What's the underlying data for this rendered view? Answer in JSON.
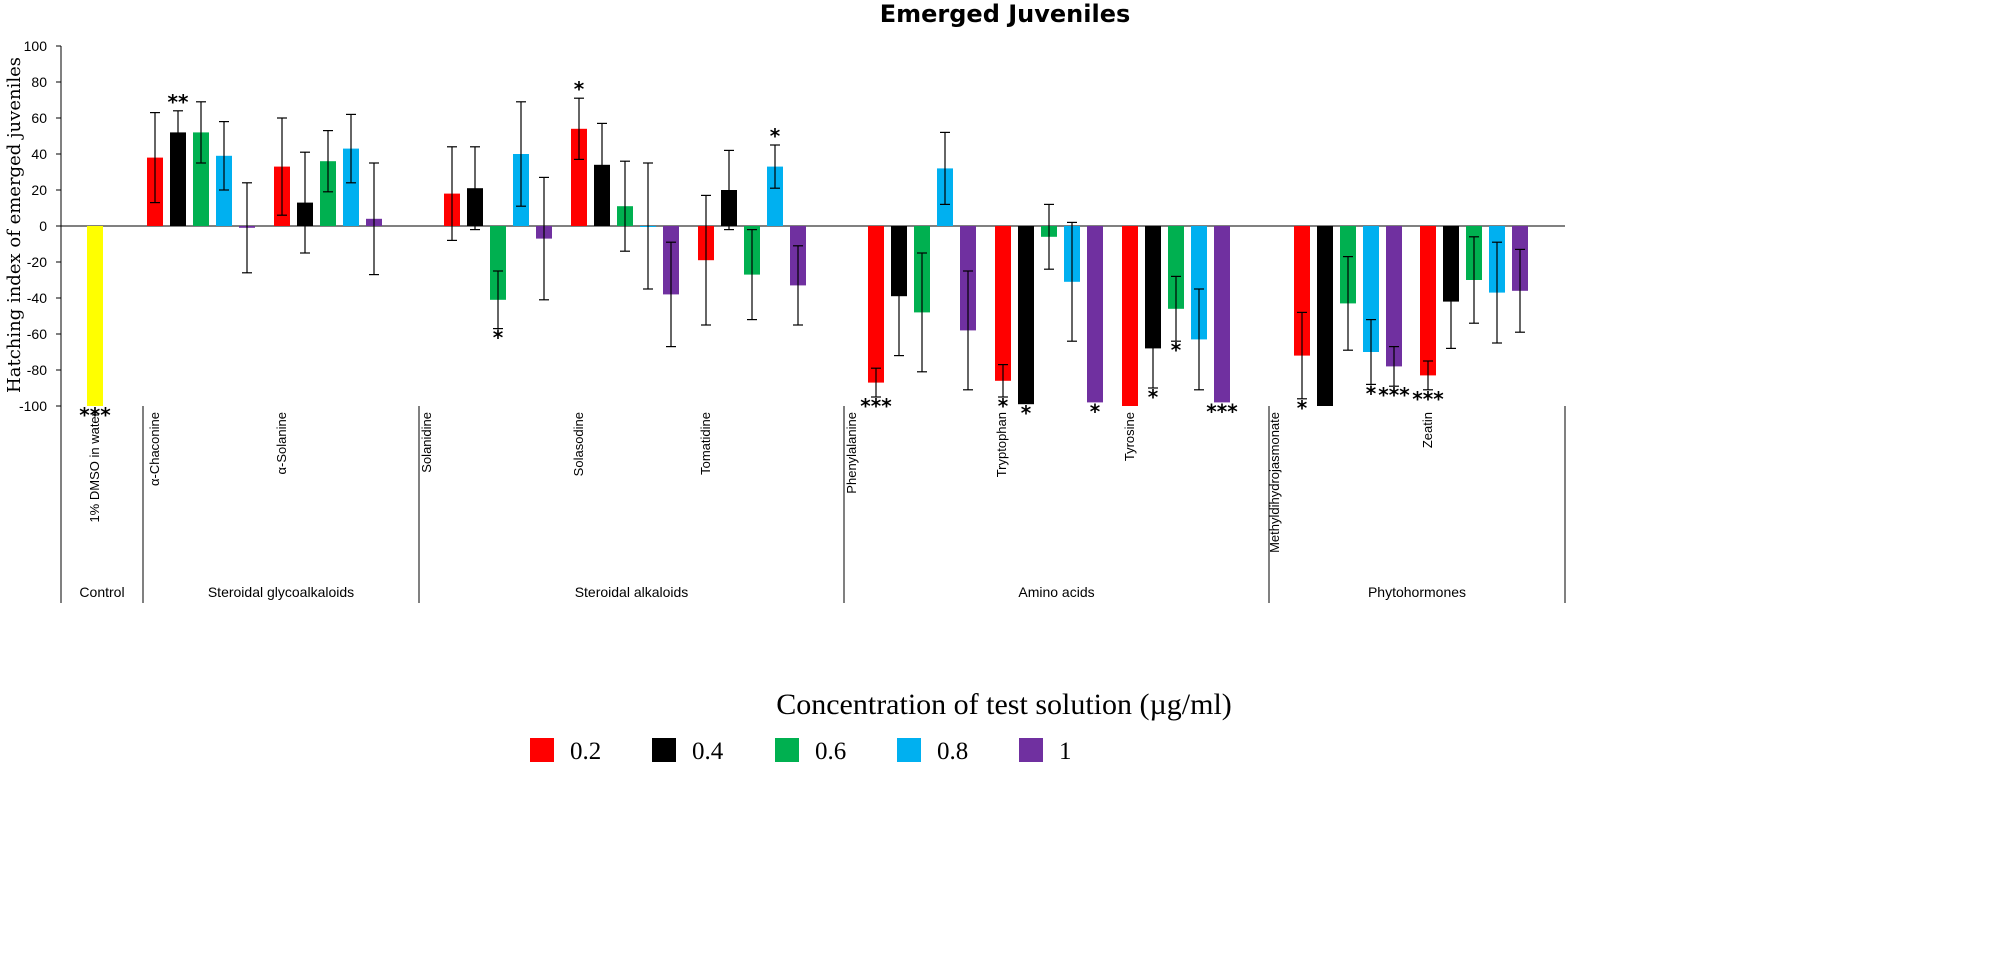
{
  "chart_data": {
    "type": "bar",
    "title": "Emerged Juveniles",
    "ylabel": "Hatching  index  of  emerged  juveniles",
    "ylim": [
      -100,
      100
    ],
    "yticks": [
      100,
      80,
      60,
      40,
      20,
      0,
      -20,
      -40,
      -60,
      -80,
      -100
    ],
    "grid": false,
    "legend": {
      "title": "Concentration of test solution (µg/ml)",
      "placement": "bottom",
      "items": [
        {
          "label": "0.2",
          "color": "#ff0000"
        },
        {
          "label": "0.4",
          "color": "#000000"
        },
        {
          "label": "0.6",
          "color": "#00b050"
        },
        {
          "label": "0.8",
          "color": "#00b0f0"
        },
        {
          "label": "1",
          "color": "#7030a0"
        }
      ]
    },
    "groups": [
      {
        "label": "Control",
        "compounds": [
          "1% DMSO in water"
        ]
      },
      {
        "label": "Steroidal glycoalkaloids",
        "compounds": [
          "α-Chaconine",
          "α-Solanine"
        ]
      },
      {
        "label": "Steroidal alkaloids",
        "compounds": [
          "Solanidine",
          "Solasodine",
          "Tomatidine"
        ]
      },
      {
        "label": "Amino acids",
        "compounds": [
          "Phenylalanine",
          "Tryptophan",
          "Tyrosine"
        ]
      },
      {
        "label": "Phytohormones",
        "compounds": [
          "Methyldihydrojasmonate",
          "Zeatin"
        ]
      }
    ],
    "compounds": [
      {
        "name": "1% DMSO in water",
        "bars": [
          {
            "value": -100,
            "error": 0,
            "color": "#ffff00",
            "sig": "***"
          }
        ]
      },
      {
        "name": "α-Chaconine",
        "bars": [
          {
            "value": 38,
            "error": 25,
            "sig": ""
          },
          {
            "value": 52,
            "error": 12,
            "sig": "**"
          },
          {
            "value": 52,
            "error": 17,
            "sig": ""
          },
          {
            "value": 39,
            "error": 19,
            "sig": ""
          },
          {
            "value": -1,
            "error": 25,
            "sig": ""
          }
        ]
      },
      {
        "name": "α-Solanine",
        "bars": [
          {
            "value": 33,
            "error": 27,
            "sig": ""
          },
          {
            "value": 13,
            "error": 28,
            "sig": ""
          },
          {
            "value": 36,
            "error": 17,
            "sig": ""
          },
          {
            "value": 43,
            "error": 19,
            "sig": ""
          },
          {
            "value": 4,
            "error": 31,
            "sig": ""
          }
        ]
      },
      {
        "name": "Solanidine",
        "bars": [
          {
            "value": 18,
            "error": 26,
            "sig": ""
          },
          {
            "value": 21,
            "error": 23,
            "sig": ""
          },
          {
            "value": -41,
            "error": 16,
            "sig": "*"
          },
          {
            "value": 40,
            "error": 29,
            "sig": ""
          },
          {
            "value": -7,
            "error": 34,
            "sig": ""
          }
        ]
      },
      {
        "name": "Solasodine",
        "bars": [
          {
            "value": 54,
            "error": 17,
            "sig": "*"
          },
          {
            "value": 34,
            "error": 23,
            "sig": ""
          },
          {
            "value": 11,
            "error": 25,
            "sig": ""
          },
          {
            "value": 0,
            "error": 35,
            "sig": ""
          },
          {
            "value": -38,
            "error": 29,
            "sig": ""
          }
        ]
      },
      {
        "name": "Tomatidine",
        "bars": [
          {
            "value": -19,
            "error": 36,
            "sig": ""
          },
          {
            "value": 20,
            "error": 22,
            "sig": ""
          },
          {
            "value": -27,
            "error": 25,
            "sig": ""
          },
          {
            "value": 33,
            "error": 12,
            "sig": "*"
          },
          {
            "value": -33,
            "error": 22,
            "sig": ""
          }
        ]
      },
      {
        "name": "Phenylalanine",
        "bars": [
          {
            "value": -87,
            "error": 8,
            "sig": "***"
          },
          {
            "value": -39,
            "error": 33,
            "sig": ""
          },
          {
            "value": -48,
            "error": 33,
            "sig": ""
          },
          {
            "value": 32,
            "error": 20,
            "sig": ""
          },
          {
            "value": -58,
            "error": 33,
            "sig": ""
          }
        ]
      },
      {
        "name": "Tryptophan",
        "bars": [
          {
            "value": -86,
            "error": 9,
            "sig": "*"
          },
          {
            "value": -99,
            "error": 0,
            "sig": "*"
          },
          {
            "value": -6,
            "error": 18,
            "sig": ""
          },
          {
            "value": -31,
            "error": 33,
            "sig": ""
          },
          {
            "value": -98,
            "error": 0,
            "sig": "*"
          }
        ]
      },
      {
        "name": "Tyrosine",
        "bars": [
          {
            "value": -100,
            "error": 0,
            "sig": ""
          },
          {
            "value": -68,
            "error": 22,
            "sig": "*"
          },
          {
            "value": -46,
            "error": 18,
            "sig": "*"
          },
          {
            "value": -63,
            "error": 28,
            "sig": ""
          },
          {
            "value": -98,
            "error": 0,
            "sig": "***"
          }
        ]
      },
      {
        "name": "Methyldihydrojasmonate",
        "bars": [
          {
            "value": -72,
            "error": 24,
            "sig": "*"
          },
          {
            "value": -100,
            "error": 0,
            "sig": ""
          },
          {
            "value": -43,
            "error": 26,
            "sig": ""
          },
          {
            "value": -70,
            "error": 18,
            "sig": "*"
          },
          {
            "value": -78,
            "error": 11,
            "sig": "***"
          }
        ]
      },
      {
        "name": "Zeatin",
        "bars": [
          {
            "value": -83,
            "error": 8,
            "sig": "***"
          },
          {
            "value": -42,
            "error": 26,
            "sig": ""
          },
          {
            "value": -30,
            "error": 24,
            "sig": ""
          },
          {
            "value": -37,
            "error": 28,
            "sig": ""
          },
          {
            "value": -36,
            "error": 23,
            "sig": ""
          }
        ]
      }
    ]
  }
}
